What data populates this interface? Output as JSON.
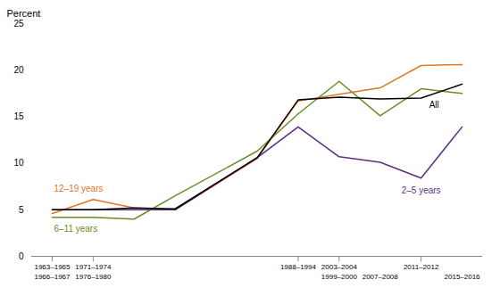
{
  "chart_data": {
    "type": "line",
    "ylabel": "Percent",
    "x": [
      0,
      1,
      2,
      3,
      5,
      6,
      7,
      8,
      9,
      10
    ],
    "xlim": [
      -0.5,
      10.5
    ],
    "xticks": [
      {
        "value": 0,
        "label": "1963–1965"
      },
      {
        "value": 0,
        "label": "1966–1967"
      },
      {
        "value": 1,
        "label": "1971–1974"
      },
      {
        "value": 1,
        "label": "1976–1980"
      },
      {
        "value": 6,
        "label": "1988–1994"
      },
      {
        "value": 7,
        "label": "1999–2000"
      },
      {
        "value": 7,
        "label": "2003–2004"
      },
      {
        "value": 8,
        "label": "2007–2008"
      },
      {
        "value": 9,
        "label": "2011–2012"
      },
      {
        "value": 10,
        "label": "2015–2016"
      }
    ],
    "series": [
      {
        "name": "12–19 years",
        "color": "#E07820",
        "values": [
          4.6,
          6.1,
          5.2,
          5.0,
          10.5,
          16.7,
          17.4,
          18.1,
          20.5,
          20.6
        ]
      },
      {
        "name": "6–11 years",
        "color": "#6B8C2A",
        "values": [
          4.2,
          4.2,
          4.0,
          6.5,
          11.3,
          15.3,
          18.8,
          15.1,
          18.0,
          17.5
        ]
      },
      {
        "name": "2–5 years",
        "color": "#5C2D82",
        "values": [
          5.0,
          5.0,
          5.0,
          5.0,
          10.6,
          13.9,
          10.7,
          10.1,
          8.4,
          13.9
        ]
      },
      {
        "name": "All",
        "color": "#000000",
        "values": [
          5.0,
          5.0,
          5.2,
          5.1,
          10.6,
          16.8,
          17.1,
          16.9,
          17.0,
          18.5
        ]
      }
    ],
    "ylim": [
      0,
      25
    ],
    "yticks": [
      0,
      5,
      10,
      15,
      20,
      25
    ],
    "grid": false
  }
}
